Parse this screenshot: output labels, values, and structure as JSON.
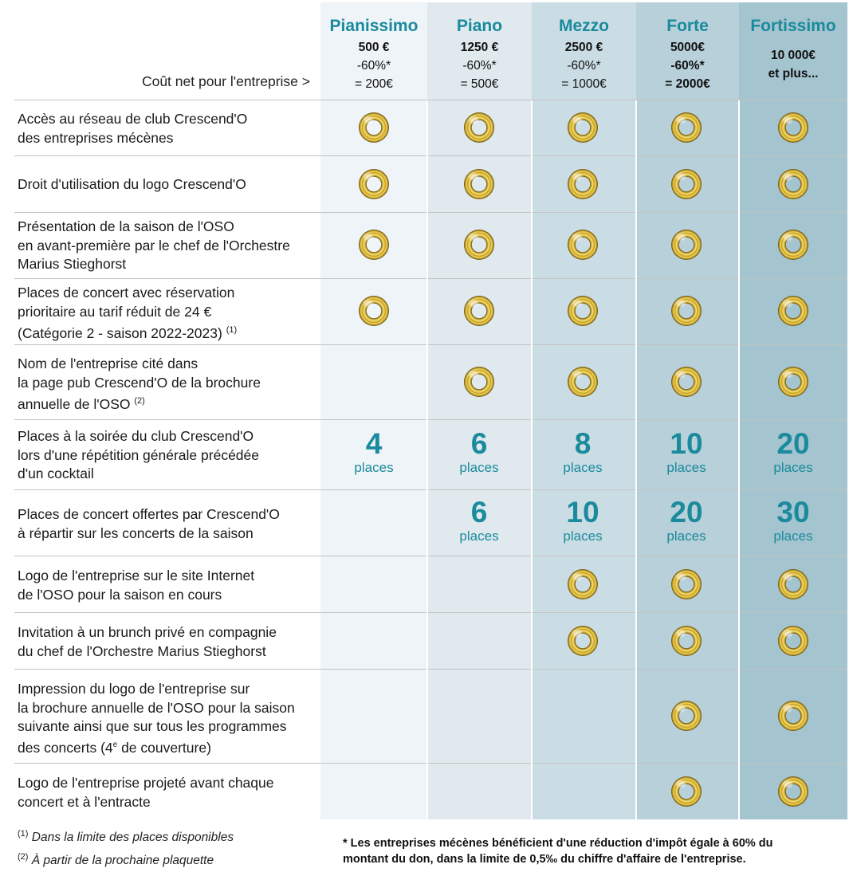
{
  "header": {
    "cost_label": "Coût net pour l'entreprise >",
    "tiers": [
      {
        "name": "Pianissimo",
        "amount": "500 €",
        "deduction": "-60%*",
        "net": "= 200€"
      },
      {
        "name": "Piano",
        "amount": "1250 €",
        "deduction": "-60%*",
        "net": "= 500€"
      },
      {
        "name": "Mezzo",
        "amount": "2500 €",
        "deduction": "-60%*",
        "net": "= 1000€"
      },
      {
        "name": "Forte",
        "amount": "5000€",
        "deduction": "-60%*",
        "net": "= 2000€"
      },
      {
        "name": "Fortissimo",
        "amount": "10 000€",
        "deduction": "et plus...",
        "net": ""
      }
    ]
  },
  "rows": [
    {
      "label": "Accès au réseau de club Crescend'O\ndes entreprises mécènes",
      "cells": [
        "ring",
        "ring",
        "ring",
        "ring",
        "ring"
      ]
    },
    {
      "label": "Droit d'utilisation du logo Crescend'O",
      "cells": [
        "ring",
        "ring",
        "ring",
        "ring",
        "ring"
      ]
    },
    {
      "label": "Présentation de la saison de l'OSO\nen avant-première par le chef de l'Orchestre\nMarius Stieghorst",
      "cells": [
        "ring",
        "ring",
        "ring",
        "ring",
        "ring"
      ]
    },
    {
      "label": "Places de concert avec réservation\nprioritaire au tarif réduit de 24 €\n(Catégorie 2 - saison  2022-2023)",
      "note": "(1)",
      "cells": [
        "ring",
        "ring",
        "ring",
        "ring",
        "ring"
      ]
    },
    {
      "label": "Nom de l'entreprise cité dans\nla page pub Crescend'O de la brochure\nannuelle de l'OSO",
      "note": "(2)",
      "cells": [
        "",
        "ring",
        "ring",
        "ring",
        "ring"
      ]
    },
    {
      "label": "Places à la soirée du club Crescend'O\nlors d'une répétition générale précédée\nd'un cocktail",
      "cells": [
        "4",
        "6",
        "8",
        "10",
        "20"
      ]
    },
    {
      "label": "Places de concert offertes par Crescend'O\nà répartir sur les concerts de la saison",
      "cells": [
        "",
        "6",
        "10",
        "20",
        "30"
      ]
    },
    {
      "label": "Logo de l'entreprise sur le site Internet\nde l'OSO pour la saison en cours",
      "cells": [
        "",
        "",
        "ring",
        "ring",
        "ring"
      ]
    },
    {
      "label": "Invitation à un brunch privé en compagnie\ndu chef de l'Orchestre Marius Stieghorst",
      "cells": [
        "",
        "",
        "ring",
        "ring",
        "ring"
      ]
    },
    {
      "label": "Impression du logo de l'entreprise sur\nla brochure annuelle de l'OSO pour la saison\nsuivante ainsi que sur tous les programmes\ndes concerts (4e de couverture)",
      "cells": [
        "",
        "",
        "",
        "ring",
        "ring"
      ]
    },
    {
      "label": "Logo de l'entreprise projeté avant chaque\nconcert et à l'entracte",
      "cells": [
        "",
        "",
        "",
        "ring",
        "ring"
      ]
    }
  ],
  "places_unit": "places",
  "footnotes": {
    "note1_mark": "(1)",
    "note1": "Dans la limite des places disponibles",
    "note2_mark": "(2)",
    "note2": "À partir de la prochaine plaquette",
    "tax": "* Les entreprises mécènes bénéficient d'une réduction d'impôt égale à 60% du montant du don, dans la limite de 0,5‰ du chiffre d'affaire de l'entreprise."
  }
}
